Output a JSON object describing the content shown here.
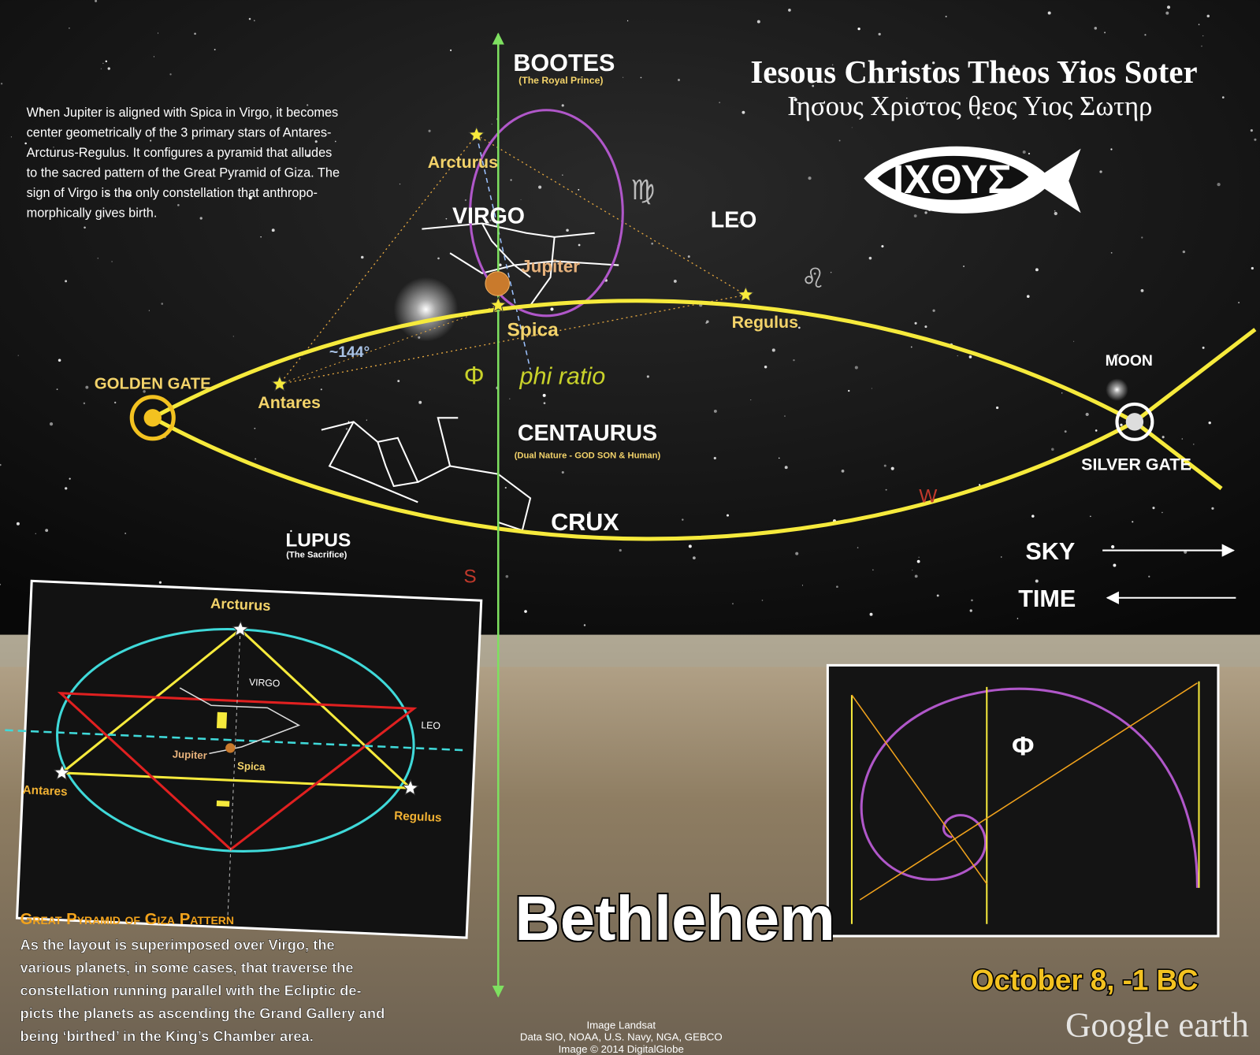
{
  "header": {
    "title": "Iesous Christos Theos Yios Soter",
    "greek": "Ιησους Χριστος θεος Υιος Σωτηρ",
    "fish": "ΙΧΘΥΣ"
  },
  "intro_lines": [
    "When Jupiter is aligned with Spica in Virgo, it becomes",
    "center geometrically of the 3 primary stars of Antares-",
    "Arcturus-Regulus. It configures a pyramid that alludes",
    "to the sacred pattern of the Great Pyramid of Giza. The",
    "sign of Virgo is the only constellation that anthropo-",
    "morphically gives birth."
  ],
  "sky": {
    "bootes": "BOOTES",
    "bootes_sub": "(The Royal Prince)",
    "arcturus": "Arcturus",
    "virgo": "VIRGO",
    "virgo_sign": "♍",
    "leo": "LEO",
    "leo_sign": "♌",
    "jupiter": "Jupiter",
    "spica": "Spica",
    "regulus": "Regulus",
    "angle": "~144°",
    "golden_gate": "GOLDEN GATE",
    "antares": "Antares",
    "phi": "Φ",
    "phi_ratio": "phi ratio",
    "centaurus": "CENTAURUS",
    "centaurus_sub": "(Dual Nature - GOD SON & Human)",
    "crux": "CRUX",
    "lupus": "LUPUS",
    "lupus_sub": "(The Sacrifice)",
    "south": "S",
    "west": "W",
    "moon": "MOON",
    "silver_gate": "SILVER GATE",
    "sky_arrow": "SKY",
    "time_arrow": "TIME"
  },
  "inset_left": {
    "arcturus": "Arcturus",
    "virgo": "VIRGO",
    "leo": "LEO",
    "jupiter": "Jupiter",
    "spica": "Spica",
    "antares": "Antares",
    "regulus": "Regulus"
  },
  "inset_right": {
    "phi": "Φ"
  },
  "giza": {
    "heading": "Great Pyramid of Giza Pattern",
    "lines": [
      "As the layout is superimposed over Virgo, the",
      "various planets, in some cases, that traverse the",
      "constellation running parallel with the Ecliptic de-",
      "picts the planets as ascending the Grand Gallery and",
      "being ‘birthed’ in the King’s Chamber area."
    ]
  },
  "footer": {
    "place": "Bethlehem",
    "date": "October 8, -1 BC",
    "brand": "Google earth",
    "credits": [
      "Image Landsat",
      "Data SIO, NOAA, U.S. Navy, NGA, GEBCO",
      "Image © 2014 DigitalGlobe"
    ]
  }
}
